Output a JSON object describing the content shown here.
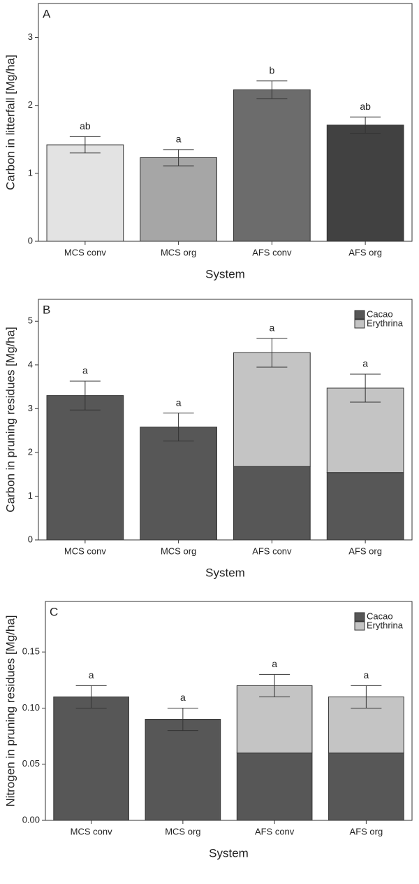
{
  "chart_data": [
    {
      "type": "bar",
      "panel": "A",
      "ylabel": "Carbon in litterfall [Mg/ha]",
      "xlabel": "System",
      "categories": [
        "MCS conv",
        "MCS org",
        "AFS conv",
        "AFS org"
      ],
      "values": [
        1.42,
        1.23,
        2.23,
        1.71
      ],
      "errors": [
        0.12,
        0.12,
        0.13,
        0.12
      ],
      "letters": [
        "ab",
        "a",
        "b",
        "ab"
      ],
      "colors": [
        "#e3e3e3",
        "#a6a6a6",
        "#6c6c6c",
        "#414141"
      ],
      "ylim": [
        0,
        3.5
      ],
      "yticks": [
        0,
        1,
        2,
        3
      ]
    },
    {
      "type": "stacked_bar",
      "panel": "B",
      "ylabel": "Carbon in pruning residues [Mg/ha]",
      "xlabel": "System",
      "categories": [
        "MCS conv",
        "MCS org",
        "AFS conv",
        "AFS org"
      ],
      "series": [
        {
          "name": "Cacao",
          "color": "#575757",
          "values": [
            3.3,
            2.58,
            1.68,
            1.54
          ]
        },
        {
          "name": "Erythrina",
          "color": "#c4c4c4",
          "values": [
            0,
            0,
            2.6,
            1.93
          ]
        }
      ],
      "errors": [
        0.33,
        0.32,
        0.33,
        0.32
      ],
      "letters": [
        "a",
        "a",
        "a",
        "a"
      ],
      "ylim": [
        0,
        5.5
      ],
      "yticks": [
        0,
        1,
        2,
        3,
        4,
        5
      ]
    },
    {
      "type": "stacked_bar",
      "panel": "C",
      "ylabel": "Nitrogen in pruning residues [Mg/ha]",
      "xlabel": "System",
      "categories": [
        "MCS conv",
        "MCS org",
        "AFS conv",
        "AFS org"
      ],
      "series": [
        {
          "name": "Cacao",
          "color": "#575757",
          "values": [
            0.11,
            0.09,
            0.06,
            0.06
          ]
        },
        {
          "name": "Erythrina",
          "color": "#c4c4c4",
          "values": [
            0,
            0,
            0.06,
            0.05
          ]
        }
      ],
      "errors": [
        0.01,
        0.01,
        0.01,
        0.01
      ],
      "letters": [
        "a",
        "a",
        "a",
        "a"
      ],
      "ylim": [
        0,
        0.195
      ],
      "yticks": [
        {
          "value": 0,
          "label": "0.00"
        },
        {
          "value": 0.05,
          "label": "0.05"
        },
        {
          "value": 0.1,
          "label": "0.10"
        },
        {
          "value": 0.15,
          "label": "0.15"
        }
      ]
    }
  ]
}
